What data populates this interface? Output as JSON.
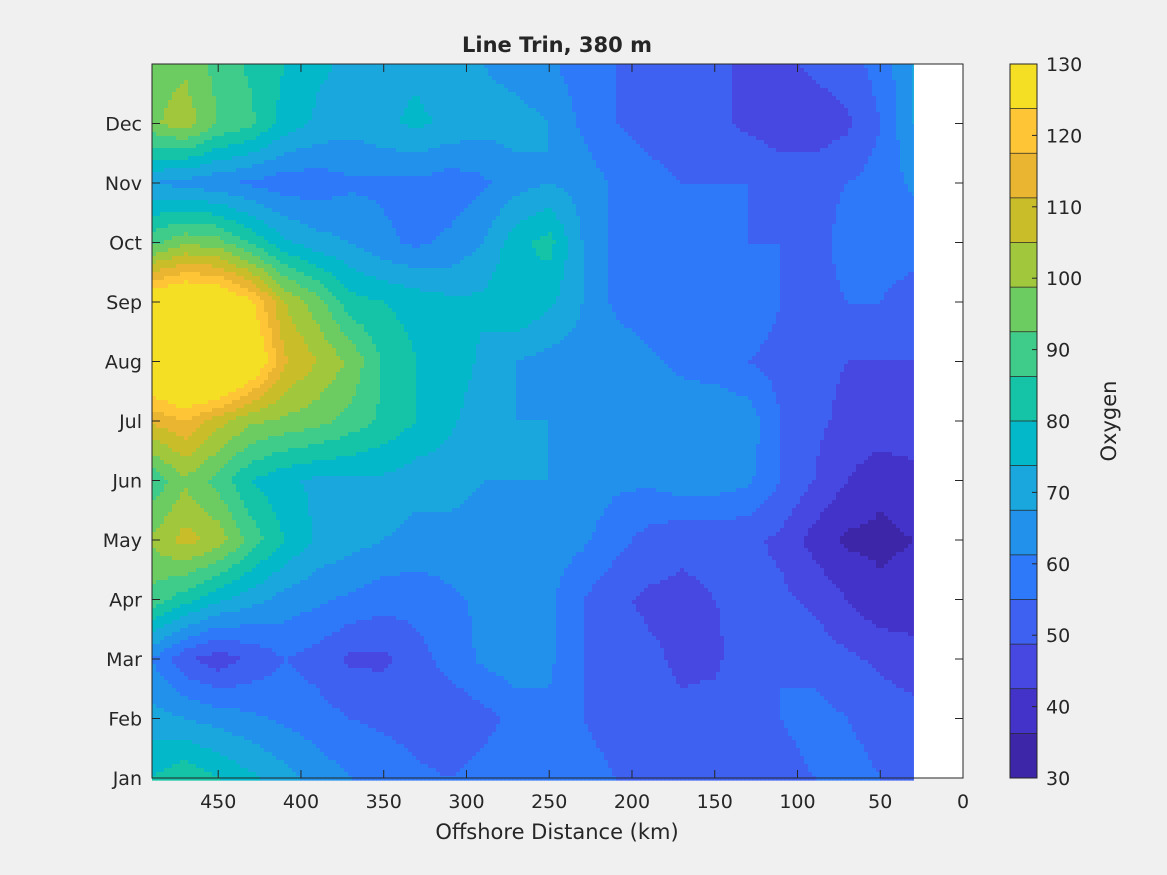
{
  "chart_data": {
    "type": "heatmap",
    "subtype": "filled-contour",
    "title": "Line Trin, 380 m",
    "xlabel": "Offshore Distance (km)",
    "ylabel": "",
    "xlim": [
      490,
      0
    ],
    "x_direction": "reversed",
    "xticks": [
      450,
      400,
      350,
      300,
      250,
      200,
      150,
      100,
      50,
      0
    ],
    "xtick_labels": [
      "450",
      "400",
      "350",
      "300",
      "250",
      "200",
      "150",
      "100",
      "50",
      "0"
    ],
    "y_categories": [
      "Jan",
      "Feb",
      "Mar",
      "Apr",
      "May",
      "Jun",
      "Jul",
      "Aug",
      "Sep",
      "Oct",
      "Nov",
      "Dec"
    ],
    "data_x_extent": [
      490,
      30
    ],
    "colorbar": {
      "label": "Oxygen",
      "ticks": [
        30,
        40,
        50,
        60,
        70,
        80,
        90,
        100,
        110,
        120,
        130
      ],
      "tick_labels": [
        "30",
        "40",
        "50",
        "60",
        "70",
        "80",
        "90",
        "100",
        "110",
        "120",
        "130"
      ],
      "range": [
        30,
        130
      ],
      "step": 5,
      "colormap": "parula",
      "colors": [
        "#3e26a8",
        "#4433c9",
        "#4648e1",
        "#3f61f2",
        "#2e79f9",
        "#2191eb",
        "#19a7de",
        "#03b8c8",
        "#15c4a6",
        "#3fcb89",
        "#6dcc61",
        "#a1c83d",
        "#c9bd2a",
        "#eab530",
        "#fec537",
        "#f5df25"
      ]
    },
    "x": [
      490,
      470,
      450,
      430,
      410,
      390,
      370,
      350,
      330,
      310,
      290,
      270,
      250,
      230,
      210,
      190,
      170,
      150,
      130,
      110,
      90,
      70,
      50,
      30
    ],
    "y": [
      "Jan",
      "Feb",
      "Mar",
      "Apr",
      "May",
      "Jun",
      "Jul",
      "Aug",
      "Sep",
      "Oct",
      "Nov",
      "Dec",
      "Jan+"
    ],
    "z": [
      [
        70,
        74,
        70,
        66,
        62,
        58,
        55,
        53,
        51,
        50,
        52,
        54,
        54,
        52,
        50,
        48,
        47,
        47,
        48,
        48,
        50,
        52,
        50,
        48
      ],
      [
        62,
        60,
        58,
        56,
        54,
        52,
        50,
        49,
        48,
        46,
        48,
        52,
        54,
        50,
        48,
        47,
        46,
        47,
        50,
        50,
        52,
        50,
        48,
        47
      ],
      [
        55,
        46,
        42,
        46,
        50,
        48,
        44,
        44,
        48,
        52,
        56,
        58,
        56,
        50,
        48,
        46,
        44,
        44,
        48,
        50,
        48,
        46,
        44,
        42
      ],
      [
        78,
        72,
        66,
        62,
        58,
        56,
        54,
        52,
        52,
        54,
        56,
        58,
        56,
        50,
        46,
        44,
        44,
        45,
        46,
        46,
        44,
        40,
        36,
        37
      ],
      [
        86,
        92,
        88,
        78,
        70,
        64,
        62,
        60,
        58,
        58,
        58,
        58,
        58,
        56,
        52,
        48,
        46,
        46,
        46,
        44,
        38,
        34,
        34,
        35
      ],
      [
        76,
        84,
        78,
        70,
        66,
        64,
        64,
        64,
        62,
        62,
        60,
        60,
        60,
        58,
        56,
        56,
        58,
        58,
        56,
        50,
        45,
        40,
        36,
        38
      ],
      [
        96,
        100,
        92,
        86,
        84,
        82,
        78,
        74,
        70,
        66,
        62,
        60,
        60,
        60,
        58,
        56,
        58,
        60,
        58,
        50,
        46,
        44,
        44,
        44
      ],
      [
        118,
        124,
        128,
        114,
        96,
        90,
        84,
        74,
        70,
        68,
        64,
        60,
        58,
        58,
        58,
        56,
        54,
        52,
        50,
        48,
        46,
        45,
        45,
        45
      ],
      [
        112,
        116,
        114,
        106,
        90,
        82,
        72,
        70,
        68,
        66,
        66,
        70,
        66,
        60,
        54,
        52,
        50,
        52,
        54,
        50,
        48,
        50,
        50,
        48
      ],
      [
        78,
        84,
        82,
        74,
        66,
        62,
        60,
        56,
        54,
        56,
        60,
        68,
        72,
        60,
        54,
        52,
        50,
        50,
        50,
        50,
        48,
        52,
        52,
        52
      ],
      [
        60,
        58,
        56,
        54,
        52,
        52,
        54,
        54,
        54,
        52,
        54,
        58,
        60,
        58,
        54,
        52,
        50,
        50,
        50,
        48,
        48,
        50,
        52,
        56
      ],
      [
        84,
        88,
        80,
        76,
        68,
        64,
        62,
        64,
        66,
        64,
        62,
        62,
        60,
        54,
        50,
        48,
        46,
        46,
        44,
        42,
        42,
        44,
        50,
        60
      ],
      [
        82,
        84,
        78,
        74,
        70,
        66,
        64,
        64,
        64,
        62,
        60,
        58,
        56,
        52,
        50,
        48,
        46,
        46,
        44,
        44,
        46,
        48,
        52,
        60
      ]
    ]
  }
}
